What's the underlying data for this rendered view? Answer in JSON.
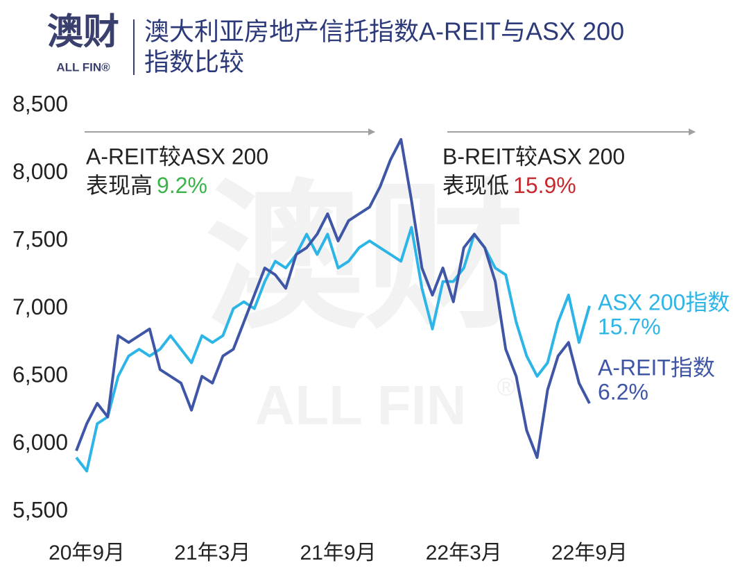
{
  "logo": {
    "name": "澳财",
    "sub": "ALL FIN®"
  },
  "watermark": {
    "name": "澳财",
    "sub": "ALL FIN",
    "mark": "®"
  },
  "chart_data": {
    "type": "line",
    "title": [
      "澳大利亚房地产信托指数A-REIT与ASX 200",
      "指数比较"
    ],
    "categories": [
      null,
      "20年9月",
      null,
      null,
      null,
      null,
      null,
      null,
      null,
      null,
      null,
      null,
      null,
      "21年3月",
      null,
      null,
      null,
      null,
      null,
      null,
      null,
      null,
      null,
      null,
      null,
      "21年9月",
      null,
      null,
      null,
      null,
      null,
      null,
      null,
      null,
      null,
      null,
      null,
      "22年3月",
      null,
      null,
      null,
      null,
      null,
      null,
      null,
      null,
      null,
      null,
      null,
      "22年9月"
    ],
    "ylim": [
      5500,
      8500
    ],
    "yticks": [
      {
        "value": 5500,
        "label": "5,500"
      },
      {
        "value": 6000,
        "label": "6,000"
      },
      {
        "value": 6500,
        "label": "6,500"
      },
      {
        "value": 7000,
        "label": "7,000"
      },
      {
        "value": 7500,
        "label": "7,500"
      },
      {
        "value": 8000,
        "label": "8,000"
      },
      {
        "value": 8500,
        "label": "8,500"
      }
    ],
    "grid": false,
    "series": [
      {
        "name": "ASX 200指数",
        "end_label": "15.7%",
        "color": "#2cb5e6",
        "values": [
          5900,
          5800,
          6150,
          6200,
          6500,
          6650,
          6700,
          6650,
          6700,
          6800,
          6700,
          6600,
          6800,
          6750,
          6800,
          7000,
          7050,
          7000,
          7200,
          7350,
          7300,
          7400,
          7550,
          7400,
          7550,
          7300,
          7350,
          7450,
          7500,
          7450,
          7400,
          7350,
          7600,
          7150,
          6850,
          7200,
          7200,
          7300,
          7550,
          7450,
          7300,
          7250,
          6900,
          6650,
          6500,
          6600,
          6900,
          7100,
          6750,
          7020
        ]
      },
      {
        "name": "A-REIT指数",
        "end_label": "6.2%",
        "color": "#3f56a6",
        "values": [
          5950,
          6150,
          6300,
          6200,
          6800,
          6750,
          6800,
          6850,
          6550,
          6500,
          6450,
          6250,
          6500,
          6450,
          6650,
          6700,
          6900,
          7100,
          7300,
          7250,
          7150,
          7400,
          7450,
          7550,
          7700,
          7500,
          7650,
          7700,
          7750,
          7900,
          8100,
          8250,
          7800,
          7300,
          7100,
          7300,
          7050,
          7450,
          7550,
          7450,
          7200,
          6700,
          6500,
          6100,
          5900,
          6400,
          6650,
          6750,
          6450,
          6300
        ]
      }
    ],
    "annotations": [
      {
        "line1": "A-REIT较ASX 200",
        "line2": "表现高",
        "value": "9.2%",
        "color": "#3ab34a"
      },
      {
        "line1": "B-REIT较ASX 200",
        "line2": "表现低",
        "value": "15.9%",
        "color": "#c62a2f"
      }
    ]
  }
}
